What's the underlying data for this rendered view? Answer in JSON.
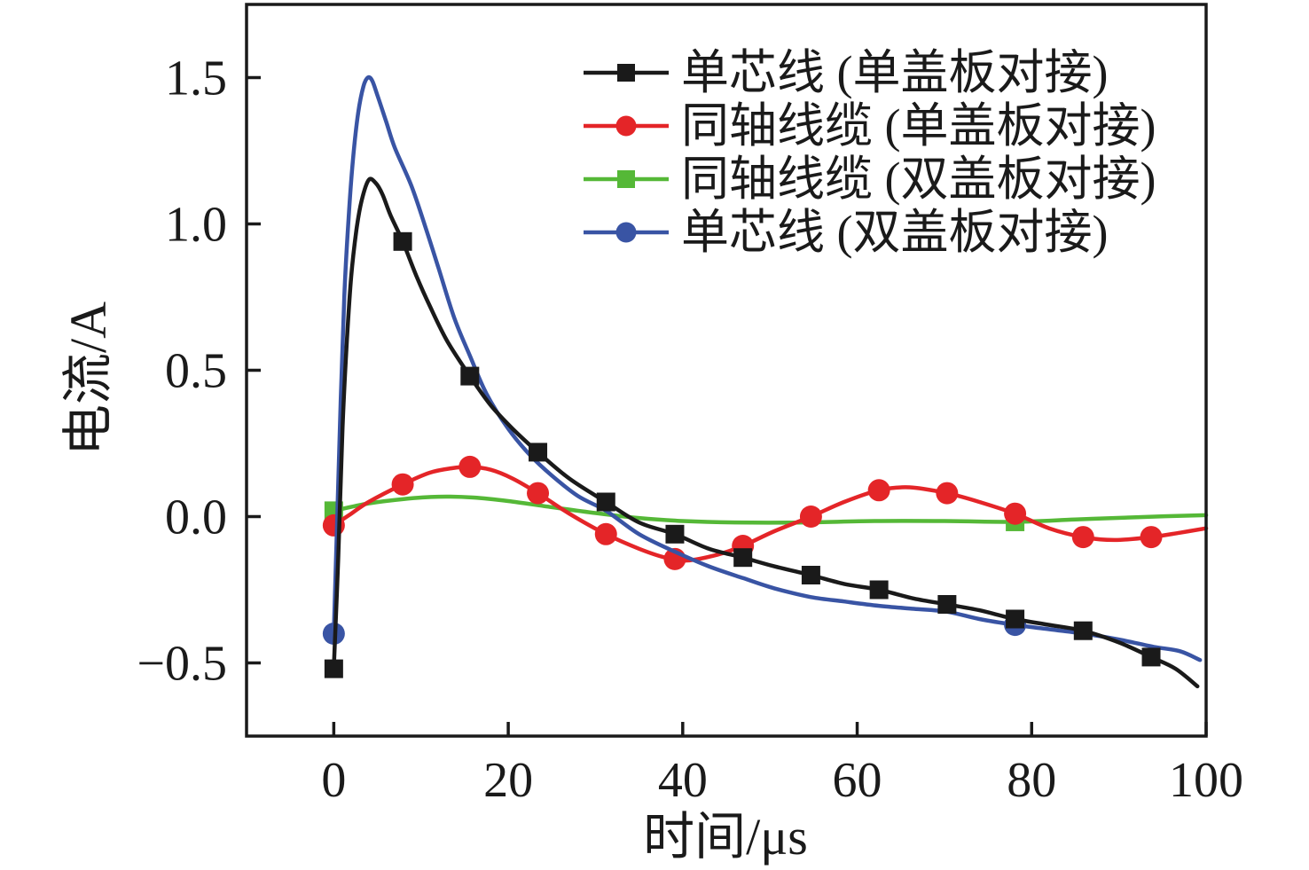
{
  "chart_data": {
    "type": "line",
    "title": "",
    "xlabel": "时间/μs",
    "ylabel": "电流/A",
    "xlim": [
      -10,
      100
    ],
    "ylim": [
      -0.75,
      1.75
    ],
    "grid": false,
    "legend_position": "upper-right",
    "frame_color": "#1a1a1a",
    "xticks": [
      {
        "v": 0,
        "label": "0"
      },
      {
        "v": 20,
        "label": "20"
      },
      {
        "v": 40,
        "label": "40"
      },
      {
        "v": 60,
        "label": "60"
      },
      {
        "v": 80,
        "label": "80"
      },
      {
        "v": 100,
        "label": "100"
      }
    ],
    "yticks": [
      {
        "v": -0.5,
        "label": "−0.5"
      },
      {
        "v": 0.0,
        "label": "0.0"
      },
      {
        "v": 0.5,
        "label": "0.5"
      },
      {
        "v": 1.0,
        "label": "1.0"
      },
      {
        "v": 1.5,
        "label": "1.5"
      }
    ],
    "series": [
      {
        "name": "单芯线 (单盖板对接)",
        "color": "#1a1a1a",
        "marker": "square",
        "peak": [
          4,
          1.15
        ],
        "markers": [
          [
            0,
            -0.52
          ],
          [
            7.9,
            0.94
          ],
          [
            15.6,
            0.48
          ],
          [
            23.4,
            0.22
          ],
          [
            31.2,
            0.05
          ],
          [
            39.1,
            -0.06
          ],
          [
            46.9,
            -0.14
          ],
          [
            54.7,
            -0.2
          ],
          [
            62.5,
            -0.25
          ],
          [
            70.3,
            -0.3
          ],
          [
            78.1,
            -0.35
          ],
          [
            85.9,
            -0.39
          ],
          [
            93.7,
            -0.48
          ]
        ],
        "curve": [
          [
            0,
            -0.52
          ],
          [
            0.5,
            -0.15
          ],
          [
            1,
            0.3
          ],
          [
            1.5,
            0.6
          ],
          [
            2,
            0.82
          ],
          [
            2.6,
            0.98
          ],
          [
            3.2,
            1.08
          ],
          [
            4,
            1.15
          ],
          [
            4.8,
            1.14
          ],
          [
            5.6,
            1.1
          ],
          [
            6.5,
            1.03
          ],
          [
            7.9,
            0.94
          ],
          [
            9.5,
            0.82
          ],
          [
            11,
            0.72
          ],
          [
            13,
            0.6
          ],
          [
            15.6,
            0.48
          ],
          [
            18,
            0.38
          ],
          [
            20.5,
            0.3
          ],
          [
            23.4,
            0.22
          ],
          [
            27,
            0.13
          ],
          [
            31.2,
            0.05
          ],
          [
            35,
            -0.02
          ],
          [
            39.1,
            -0.06
          ],
          [
            43,
            -0.11
          ],
          [
            46.9,
            -0.14
          ],
          [
            50.5,
            -0.17
          ],
          [
            54.7,
            -0.2
          ],
          [
            58.5,
            -0.23
          ],
          [
            62.5,
            -0.25
          ],
          [
            66.5,
            -0.28
          ],
          [
            70.3,
            -0.3
          ],
          [
            74,
            -0.32
          ],
          [
            78.1,
            -0.35
          ],
          [
            82,
            -0.37
          ],
          [
            85.9,
            -0.39
          ],
          [
            90,
            -0.43
          ],
          [
            93.7,
            -0.48
          ],
          [
            96.5,
            -0.52
          ],
          [
            99,
            -0.58
          ]
        ]
      },
      {
        "name": "同轴线缆 (单盖板对接)",
        "color": "#e42528",
        "marker": "circle",
        "peak": [
          15.6,
          0.17
        ],
        "markers": [
          [
            0,
            -0.03
          ],
          [
            7.9,
            0.11
          ],
          [
            15.6,
            0.17
          ],
          [
            23.4,
            0.08
          ],
          [
            31.2,
            -0.06
          ],
          [
            39.1,
            -0.145
          ],
          [
            46.9,
            -0.1
          ],
          [
            54.7,
            0.0
          ],
          [
            62.5,
            0.09
          ],
          [
            70.3,
            0.08
          ],
          [
            78.1,
            0.01
          ],
          [
            85.9,
            -0.07
          ],
          [
            93.7,
            -0.07
          ]
        ],
        "curve": [
          [
            0,
            -0.03
          ],
          [
            2,
            0.01
          ],
          [
            4,
            0.05
          ],
          [
            7.9,
            0.11
          ],
          [
            11,
            0.15
          ],
          [
            13.5,
            0.165
          ],
          [
            15.6,
            0.17
          ],
          [
            18,
            0.16
          ],
          [
            20.5,
            0.13
          ],
          [
            23.4,
            0.08
          ],
          [
            27,
            0.01
          ],
          [
            31.2,
            -0.06
          ],
          [
            35,
            -0.11
          ],
          [
            38,
            -0.14
          ],
          [
            40.5,
            -0.15
          ],
          [
            44,
            -0.13
          ],
          [
            46.9,
            -0.1
          ],
          [
            50.5,
            -0.05
          ],
          [
            54.7,
            0.0
          ],
          [
            58.5,
            0.05
          ],
          [
            62.5,
            0.09
          ],
          [
            66,
            0.1
          ],
          [
            70.3,
            0.08
          ],
          [
            74,
            0.05
          ],
          [
            78.1,
            0.01
          ],
          [
            82,
            -0.04
          ],
          [
            85.9,
            -0.07
          ],
          [
            89.5,
            -0.08
          ],
          [
            93.7,
            -0.07
          ],
          [
            97,
            -0.055
          ],
          [
            100,
            -0.04
          ]
        ]
      },
      {
        "name": "同轴线缆 (双盖板对接)",
        "color": "#55b837",
        "marker": "square",
        "peak": [
          12,
          0.07
        ],
        "markers": [
          [
            0,
            0.02
          ],
          [
            78.1,
            -0.018
          ]
        ],
        "curve": [
          [
            0,
            0.02
          ],
          [
            4,
            0.045
          ],
          [
            8,
            0.06
          ],
          [
            12,
            0.068
          ],
          [
            16,
            0.065
          ],
          [
            20,
            0.053
          ],
          [
            25,
            0.032
          ],
          [
            30,
            0.012
          ],
          [
            35,
            -0.005
          ],
          [
            40,
            -0.015
          ],
          [
            46,
            -0.02
          ],
          [
            54,
            -0.02
          ],
          [
            62,
            -0.015
          ],
          [
            70,
            -0.015
          ],
          [
            78.1,
            -0.018
          ],
          [
            85,
            -0.01
          ],
          [
            92,
            -0.002
          ],
          [
            100,
            0.005
          ]
        ]
      },
      {
        "name": "单芯线 (双盖板对接)",
        "color": "#3954a4",
        "marker": "circle",
        "peak": [
          3.9,
          1.5
        ],
        "markers": [
          [
            0,
            -0.4
          ],
          [
            78.1,
            -0.37
          ]
        ],
        "curve": [
          [
            0,
            -0.4
          ],
          [
            0.4,
            0.0
          ],
          [
            0.8,
            0.4
          ],
          [
            1.2,
            0.75
          ],
          [
            1.7,
            1.02
          ],
          [
            2.2,
            1.22
          ],
          [
            2.8,
            1.38
          ],
          [
            3.4,
            1.47
          ],
          [
            3.9,
            1.5
          ],
          [
            4.4,
            1.49
          ],
          [
            5,
            1.44
          ],
          [
            6,
            1.35
          ],
          [
            7,
            1.26
          ],
          [
            8.9,
            1.13
          ],
          [
            10.5,
            0.99
          ],
          [
            12,
            0.85
          ],
          [
            13.8,
            0.68
          ],
          [
            15.6,
            0.55
          ],
          [
            17.5,
            0.42
          ],
          [
            20,
            0.3
          ],
          [
            22.5,
            0.21
          ],
          [
            25,
            0.14
          ],
          [
            28,
            0.07
          ],
          [
            31.2,
            0.02
          ],
          [
            35,
            -0.06
          ],
          [
            39.1,
            -0.12
          ],
          [
            43,
            -0.17
          ],
          [
            46.9,
            -0.21
          ],
          [
            50.5,
            -0.245
          ],
          [
            54.7,
            -0.275
          ],
          [
            58.5,
            -0.29
          ],
          [
            62.5,
            -0.305
          ],
          [
            66.5,
            -0.315
          ],
          [
            70.3,
            -0.325
          ],
          [
            74,
            -0.35
          ],
          [
            78.1,
            -0.37
          ],
          [
            82,
            -0.385
          ],
          [
            86,
            -0.4
          ],
          [
            90,
            -0.42
          ],
          [
            94,
            -0.445
          ],
          [
            97,
            -0.46
          ],
          [
            99.3,
            -0.49
          ]
        ]
      }
    ],
    "draw_order": [
      2,
      1,
      3,
      0
    ]
  }
}
